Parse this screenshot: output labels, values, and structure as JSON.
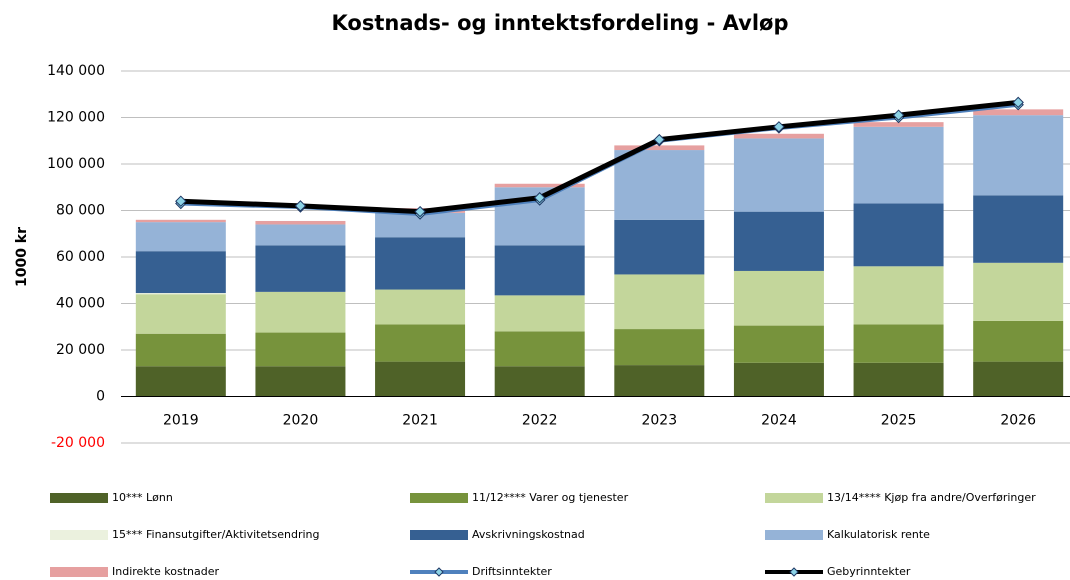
{
  "chart_data": {
    "type": "bar",
    "stacked": true,
    "title": "Kostnads- og inntektsfordeling - Avløp",
    "y_label": "1000 kr",
    "categories": [
      "2019",
      "2020",
      "2021",
      "2022",
      "2023",
      "2024",
      "2025",
      "2026"
    ],
    "ylim": [
      -20000,
      140000
    ],
    "yticks": [
      {
        "value": -20000,
        "label": "-20 000"
      },
      {
        "value": 0,
        "label": "0"
      },
      {
        "value": 20000,
        "label": "20 000"
      },
      {
        "value": 40000,
        "label": "40 000"
      },
      {
        "value": 60000,
        "label": "60 000"
      },
      {
        "value": 80000,
        "label": "80 000"
      },
      {
        "value": 100000,
        "label": "100 000"
      },
      {
        "value": 120000,
        "label": "120 000"
      },
      {
        "value": 140000,
        "label": "140 000"
      }
    ],
    "negative_tick_color": "#ff0000",
    "grid": true,
    "legend": "bottom",
    "series": [
      {
        "name": "10*** Lønn",
        "color": "#4f6228",
        "values": [
          13000,
          13000,
          15000,
          13000,
          13500,
          14500,
          14500,
          15000
        ]
      },
      {
        "name": "11/12**** Varer og tjenester",
        "color": "#77933c",
        "values": [
          14000,
          14500,
          16000,
          15000,
          15500,
          16000,
          16500,
          17500
        ]
      },
      {
        "name": "13/14**** Kjøp fra andre/Overføringer",
        "color": "#c3d69b",
        "values": [
          17000,
          17500,
          15000,
          15500,
          23500,
          23500,
          25000,
          25000
        ]
      },
      {
        "name": "15*** Finansutgifter/Aktivitetsendring",
        "color": "#ebf1de",
        "values": [
          500,
          0,
          0,
          0,
          0,
          0,
          0,
          0
        ]
      },
      {
        "name": "Avskrivningskostnad",
        "color": "#366092",
        "values": [
          18000,
          20000,
          22500,
          21500,
          23500,
          25500,
          27000,
          29000
        ]
      },
      {
        "name": "Kalkulatorisk rente",
        "color": "#95b3d7",
        "values": [
          12500,
          9000,
          10500,
          25000,
          30000,
          31500,
          33000,
          34500
        ]
      },
      {
        "name": "Indirekte kostnader",
        "color": "#e6a0a0",
        "values": [
          1000,
          1500,
          2000,
          1500,
          2000,
          2000,
          2000,
          2500
        ]
      },
      {
        "name": "Driftsinntekter",
        "type": "line",
        "color": "#4f81bd",
        "values": [
          83000,
          81500,
          78500,
          84500,
          110000,
          115500,
          120000,
          125500
        ]
      },
      {
        "name": "Gebyrinntekter",
        "type": "line",
        "color": "#000000",
        "values": [
          84000,
          82000,
          79500,
          85500,
          110500,
          116000,
          121000,
          126500
        ]
      }
    ]
  }
}
